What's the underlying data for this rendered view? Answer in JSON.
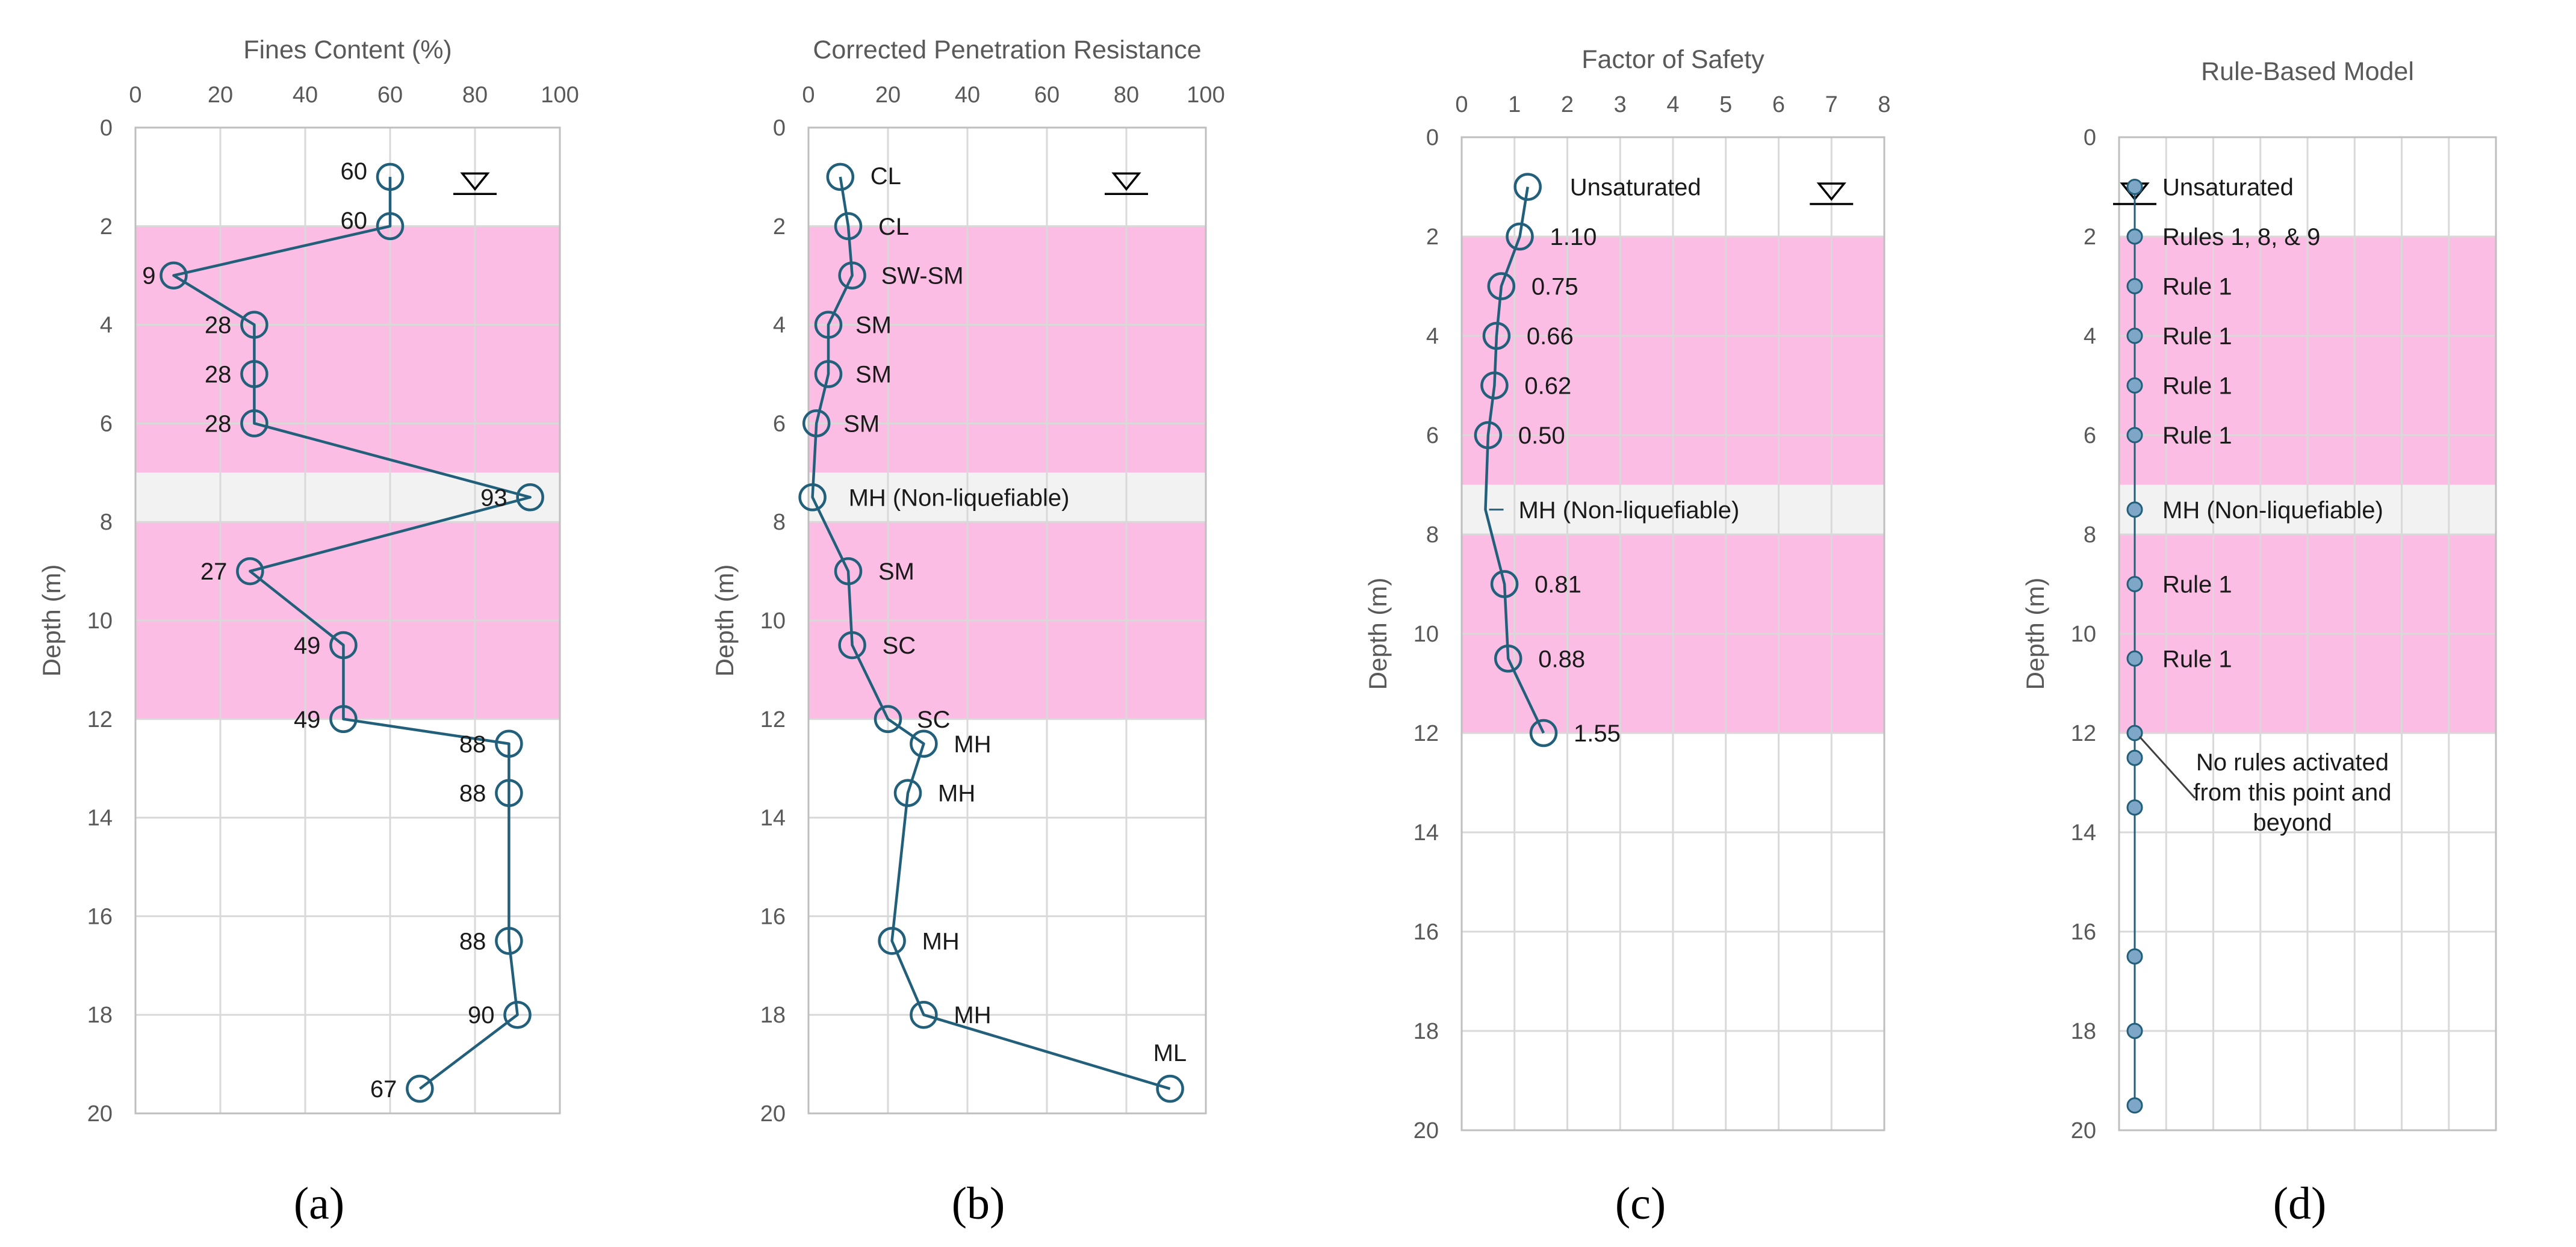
{
  "colors": {
    "line": "#215f7a",
    "marker_fill": "#7ea6c6",
    "liquefiable_band": "#fbbde3",
    "nonliquefiable_band": "#f2f2f2",
    "grid": "#d9d9d9"
  },
  "chart_data": [
    {
      "type": "line",
      "panel_label": "(a)",
      "title": "Fines Content (%)",
      "xlabel": "",
      "ylabel": "Depth (m)",
      "xlim": [
        0,
        100
      ],
      "ylim": [
        0,
        20
      ],
      "x_ticks": [
        "0",
        "20",
        "40",
        "60",
        "80",
        "100"
      ],
      "y_ticks": [
        "0",
        "2",
        "4",
        "6",
        "8",
        "10",
        "12",
        "14",
        "16",
        "18",
        "20"
      ],
      "y_inverted": true,
      "x_axis_position": "top",
      "grid": true,
      "marker": "open-circle",
      "water_table": {
        "x": 80,
        "y": 1.2
      },
      "bands": [
        {
          "type": "liquefiable",
          "from": 2,
          "to": 7
        },
        {
          "type": "non-liquefiable",
          "from": 7,
          "to": 8
        },
        {
          "type": "liquefiable",
          "from": 8,
          "to": 12
        }
      ],
      "points": [
        {
          "x": 60,
          "y": 1,
          "label": "60"
        },
        {
          "x": 60,
          "y": 2,
          "label": "60"
        },
        {
          "x": 9,
          "y": 3,
          "label": "9"
        },
        {
          "x": 28,
          "y": 4,
          "label": "28"
        },
        {
          "x": 28,
          "y": 5,
          "label": "28"
        },
        {
          "x": 28,
          "y": 6,
          "label": "28"
        },
        {
          "x": 93,
          "y": 7.5,
          "label": "93"
        },
        {
          "x": 27,
          "y": 9,
          "label": "27"
        },
        {
          "x": 49,
          "y": 10.5,
          "label": "49"
        },
        {
          "x": 49,
          "y": 12,
          "label": "49"
        },
        {
          "x": 88,
          "y": 12.5,
          "label": "88"
        },
        {
          "x": 88,
          "y": 13.5,
          "label": "88"
        },
        {
          "x": 88,
          "y": 16.5,
          "label": "88"
        },
        {
          "x": 90,
          "y": 18,
          "label": "90"
        },
        {
          "x": 67,
          "y": 19.5,
          "label": "67"
        }
      ]
    },
    {
      "type": "line",
      "panel_label": "(b)",
      "title": "Corrected Penetration Resistance",
      "xlabel": "",
      "ylabel": "Depth (m)",
      "xlim": [
        0,
        100
      ],
      "ylim": [
        0,
        20
      ],
      "x_ticks": [
        "0",
        "20",
        "40",
        "60",
        "80",
        "100"
      ],
      "y_ticks": [
        "0",
        "2",
        "4",
        "6",
        "8",
        "10",
        "12",
        "14",
        "16",
        "18",
        "20"
      ],
      "y_inverted": true,
      "x_axis_position": "top",
      "grid": true,
      "marker": "open-circle",
      "water_table": {
        "x": 80,
        "y": 1.2
      },
      "bands": [
        {
          "type": "liquefiable",
          "from": 2,
          "to": 7
        },
        {
          "type": "non-liquefiable",
          "from": 7,
          "to": 8
        },
        {
          "type": "liquefiable",
          "from": 8,
          "to": 12
        }
      ],
      "points": [
        {
          "x": 8,
          "y": 1,
          "label": "CL"
        },
        {
          "x": 10,
          "y": 2,
          "label": "CL"
        },
        {
          "x": 11,
          "y": 3,
          "label": "SW-SM"
        },
        {
          "x": 5,
          "y": 4,
          "label": "SM"
        },
        {
          "x": 5,
          "y": 5,
          "label": "SM"
        },
        {
          "x": 2,
          "y": 6,
          "label": "SM"
        },
        {
          "x": 1,
          "y": 7.5,
          "label": "MH (Non-liquefiable)"
        },
        {
          "x": 10,
          "y": 9,
          "label": "SM"
        },
        {
          "x": 11,
          "y": 10.5,
          "label": "SC"
        },
        {
          "x": 20,
          "y": 12,
          "label": "SC"
        },
        {
          "x": 29,
          "y": 12.5,
          "label": "MH"
        },
        {
          "x": 25,
          "y": 13.5,
          "label": "MH"
        },
        {
          "x": 21,
          "y": 16.5,
          "label": "MH"
        },
        {
          "x": 29,
          "y": 18,
          "label": "MH"
        },
        {
          "x": 91,
          "y": 19.5,
          "label": "ML"
        }
      ]
    },
    {
      "type": "line",
      "panel_label": "(c)",
      "title": "Factor of Safety",
      "xlabel": "",
      "ylabel": "Depth (m)",
      "xlim": [
        0,
        8
      ],
      "ylim": [
        0,
        20
      ],
      "x_ticks": [
        "0",
        "1",
        "2",
        "3",
        "4",
        "5",
        "6",
        "7",
        "8"
      ],
      "y_ticks": [
        "0",
        "2",
        "4",
        "6",
        "8",
        "10",
        "12",
        "14",
        "16",
        "18",
        "20"
      ],
      "y_inverted": true,
      "x_axis_position": "top",
      "grid": true,
      "marker": "open-circle",
      "water_table": {
        "x": 7,
        "y": 1.2
      },
      "bands": [
        {
          "type": "liquefiable",
          "from": 2,
          "to": 7
        },
        {
          "type": "non-liquefiable",
          "from": 7,
          "to": 8
        },
        {
          "type": "liquefiable",
          "from": 8,
          "to": 12
        }
      ],
      "points": [
        {
          "x": 1.25,
          "y": 1,
          "label": "Unsaturated"
        },
        {
          "x": 1.1,
          "y": 2,
          "label": "1.10"
        },
        {
          "x": 0.75,
          "y": 3,
          "label": "0.75"
        },
        {
          "x": 0.66,
          "y": 4,
          "label": "0.66"
        },
        {
          "x": 0.62,
          "y": 5,
          "label": "0.62"
        },
        {
          "x": 0.5,
          "y": 6,
          "label": "0.50"
        },
        {
          "x": 0.45,
          "y": 7.5,
          "label": "MH (Non-liquefiable)",
          "marker": false
        },
        {
          "x": 0.81,
          "y": 9,
          "label": "0.81"
        },
        {
          "x": 0.88,
          "y": 10.5,
          "label": "0.88"
        },
        {
          "x": 1.55,
          "y": 12,
          "label": "1.55"
        }
      ]
    },
    {
      "type": "scatter",
      "panel_label": "(d)",
      "title": "Rule-Based Model",
      "xlabel": "",
      "ylabel": "Depth (m)",
      "ylim": [
        0,
        20
      ],
      "x_gridlines": 8,
      "y_ticks": [
        "0",
        "2",
        "4",
        "6",
        "8",
        "10",
        "12",
        "14",
        "16",
        "18",
        "20"
      ],
      "y_inverted": true,
      "grid": true,
      "marker": "small-filled-circle",
      "water_table": {
        "x": 7,
        "y": 1.2
      },
      "bands": [
        {
          "type": "liquefiable",
          "from": 2,
          "to": 7
        },
        {
          "type": "non-liquefiable",
          "from": 7,
          "to": 8
        },
        {
          "type": "liquefiable",
          "from": 8,
          "to": 12
        }
      ],
      "points": [
        {
          "y": 1,
          "label": "Unsaturated"
        },
        {
          "y": 2,
          "label": "Rules 1, 8, & 9"
        },
        {
          "y": 3,
          "label": "Rule 1"
        },
        {
          "y": 4,
          "label": "Rule 1"
        },
        {
          "y": 5,
          "label": "Rule 1"
        },
        {
          "y": 6,
          "label": "Rule 1"
        },
        {
          "y": 7.5,
          "label": "MH (Non-liquefiable)"
        },
        {
          "y": 9,
          "label": "Rule 1"
        },
        {
          "y": 10.5,
          "label": "Rule 1"
        },
        {
          "y": 12,
          "label": ""
        },
        {
          "y": 12.5,
          "label": ""
        },
        {
          "y": 13.5,
          "label": ""
        },
        {
          "y": 16.5,
          "label": ""
        },
        {
          "y": 18,
          "label": ""
        },
        {
          "y": 19.5,
          "label": ""
        }
      ],
      "annotation": {
        "lines": [
          "No rules activated",
          "from this point and",
          "beyond"
        ],
        "points_to_y": 12
      }
    }
  ]
}
